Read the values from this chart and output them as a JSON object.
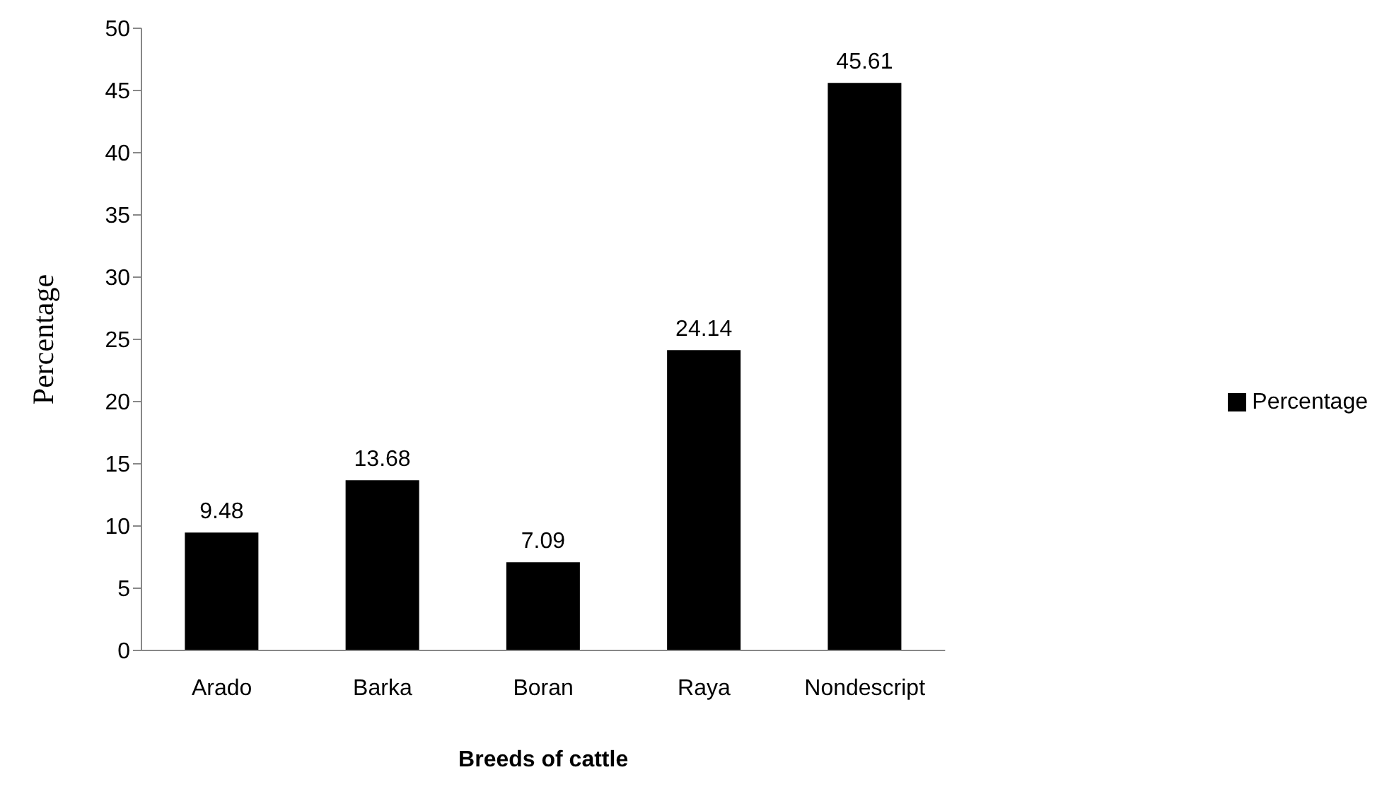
{
  "chart_data": {
    "type": "bar",
    "xlabel": "Breeds of cattle",
    "ylabel": "Percentage",
    "categories": [
      "Arado",
      "Barka",
      "Boran",
      "Raya",
      "Nondescript"
    ],
    "series": [
      {
        "name": "Percentage",
        "color": "#000000",
        "values": [
          9.48,
          13.68,
          7.09,
          24.14,
          45.61
        ]
      }
    ],
    "ylim": [
      0,
      50
    ],
    "yticks": [
      0,
      5,
      10,
      15,
      20,
      25,
      30,
      35,
      40,
      45,
      50
    ],
    "data_labels": true,
    "legend": "right"
  }
}
